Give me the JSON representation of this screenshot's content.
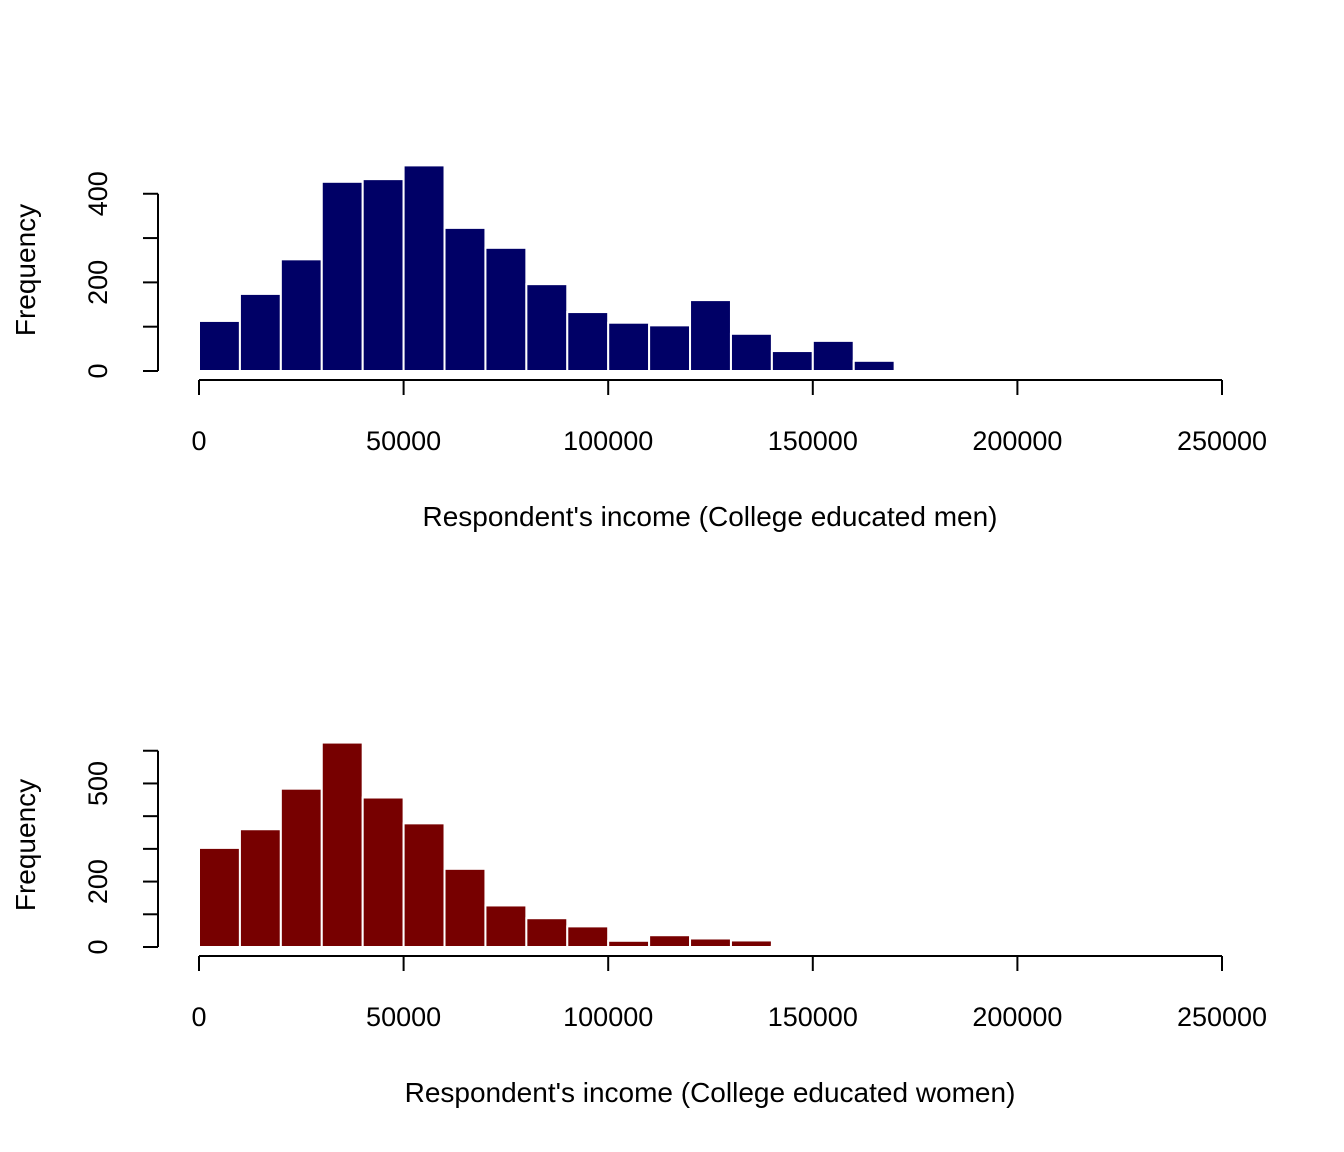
{
  "chart_data": [
    {
      "type": "bar",
      "subtype": "histogram",
      "bar_color": "#000066",
      "bar_border_color": "#ffffff",
      "bin_starts": [
        0,
        10000,
        20000,
        30000,
        40000,
        50000,
        60000,
        70000,
        80000,
        90000,
        100000,
        110000,
        120000,
        130000,
        140000,
        150000,
        160000
      ],
      "bin_width": 10000,
      "values": [
        113,
        174,
        252,
        427,
        433,
        464,
        323,
        278,
        196,
        133,
        109,
        103,
        160,
        84,
        45,
        68,
        23
      ],
      "xlim": [
        0,
        250000
      ],
      "x_ticks": [
        0,
        50000,
        100000,
        150000,
        200000,
        250000
      ],
      "x_tick_labels": [
        "0",
        "50000",
        "100000",
        "150000",
        "200000",
        "250000"
      ],
      "ylim": [
        0,
        464
      ],
      "y_minor_ticks": [
        0,
        100,
        200,
        300,
        400
      ],
      "y_labeled_ticks": [
        0,
        200,
        400
      ],
      "y_tick_labels": [
        "0",
        "200",
        "400"
      ],
      "xlabel": "Respondent's income (College educated men)",
      "ylabel": "Frequency",
      "title": ""
    },
    {
      "type": "bar",
      "subtype": "histogram",
      "bar_color": "#770000",
      "bar_border_color": "#ffffff",
      "bin_starts": [
        0,
        10000,
        20000,
        30000,
        40000,
        50000,
        60000,
        70000,
        80000,
        90000,
        100000,
        110000,
        120000,
        130000,
        140000,
        150000,
        160000
      ],
      "bin_width": 10000,
      "values": [
        303,
        360,
        484,
        625,
        457,
        378,
        239,
        127,
        88,
        63,
        19,
        36,
        26,
        20,
        4,
        6,
        2
      ],
      "xlim": [
        0,
        250000
      ],
      "x_ticks": [
        0,
        50000,
        100000,
        150000,
        200000,
        250000
      ],
      "x_tick_labels": [
        "0",
        "50000",
        "100000",
        "150000",
        "200000",
        "250000"
      ],
      "ylim": [
        0,
        600
      ],
      "y_minor_ticks": [
        0,
        100,
        200,
        300,
        400,
        500,
        600
      ],
      "y_labeled_ticks": [
        0,
        200,
        500
      ],
      "y_tick_labels": [
        "0",
        "200",
        "500"
      ],
      "xlabel": "Respondent's income (College educated women)",
      "ylabel": "Frequency",
      "title": ""
    }
  ]
}
